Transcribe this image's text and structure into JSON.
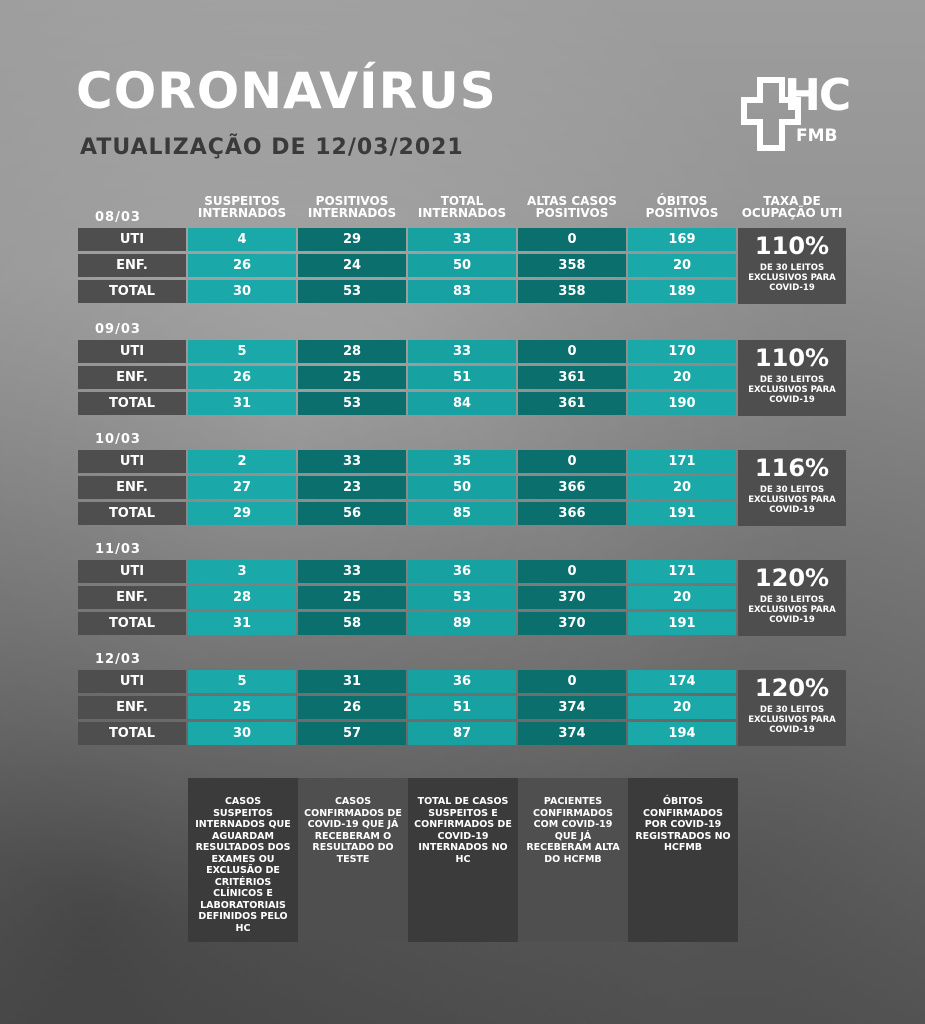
{
  "title": "CORONAVÍRUS",
  "subtitle": "ATUALIZAÇÃO DE 12/03/2021",
  "logo": {
    "hc": "HC",
    "fmb": "FMB"
  },
  "columns": [
    "SUSPEITOS INTERNADOS",
    "POSITIVOS INTERNADOS",
    "TOTAL INTERNADOS",
    "ALTAS CASOS POSITIVOS",
    "ÓBITOS POSITIVOS",
    "TAXA DE OCUPAÇÃO UTI"
  ],
  "occupancy_desc": "DE 30 LEITOS EXCLUSIVOS PARA COVID-19",
  "days": [
    {
      "date": "08/03",
      "occupancy": "110%",
      "rows": [
        {
          "label": "UTI",
          "values": [
            "4",
            "29",
            "33",
            "0",
            "169"
          ]
        },
        {
          "label": "ENF.",
          "values": [
            "26",
            "24",
            "50",
            "358",
            "20"
          ]
        },
        {
          "label": "TOTAL",
          "values": [
            "30",
            "53",
            "83",
            "358",
            "189"
          ]
        }
      ]
    },
    {
      "date": "09/03",
      "occupancy": "110%",
      "rows": [
        {
          "label": "UTI",
          "values": [
            "5",
            "28",
            "33",
            "0",
            "170"
          ]
        },
        {
          "label": "ENF.",
          "values": [
            "26",
            "25",
            "51",
            "361",
            "20"
          ]
        },
        {
          "label": "TOTAL",
          "values": [
            "31",
            "53",
            "84",
            "361",
            "190"
          ]
        }
      ]
    },
    {
      "date": "10/03",
      "occupancy": "116%",
      "rows": [
        {
          "label": "UTI",
          "values": [
            "2",
            "33",
            "35",
            "0",
            "171"
          ]
        },
        {
          "label": "ENF.",
          "values": [
            "27",
            "23",
            "50",
            "366",
            "20"
          ]
        },
        {
          "label": "TOTAL",
          "values": [
            "29",
            "56",
            "85",
            "366",
            "191"
          ]
        }
      ]
    },
    {
      "date": "11/03",
      "occupancy": "120%",
      "rows": [
        {
          "label": "UTI",
          "values": [
            "3",
            "33",
            "36",
            "0",
            "171"
          ]
        },
        {
          "label": "ENF.",
          "values": [
            "28",
            "25",
            "53",
            "370",
            "20"
          ]
        },
        {
          "label": "TOTAL",
          "values": [
            "31",
            "58",
            "89",
            "370",
            "191"
          ]
        }
      ]
    },
    {
      "date": "12/03",
      "occupancy": "120%",
      "rows": [
        {
          "label": "UTI",
          "values": [
            "5",
            "31",
            "36",
            "0",
            "174"
          ]
        },
        {
          "label": "ENF.",
          "values": [
            "25",
            "26",
            "51",
            "374",
            "20"
          ]
        },
        {
          "label": "TOTAL",
          "values": [
            "30",
            "57",
            "87",
            "374",
            "194"
          ]
        }
      ]
    }
  ],
  "legend": [
    "CASOS SUSPEITOS INTERNADOS QUE AGUARDAM RESULTADOS DOS EXAMES OU EXCLUSÃO DE CRITÉRIOS CLÍNICOS E LABORATORIAIS DEFINIDOS PELO HC",
    "CASOS CONFIRMADOS DE COVID-19 QUE JÁ RECEBERAM O RESULTADO DO TESTE",
    "TOTAL DE CASOS SUSPEITOS E CONFIRMADOS DE COVID-19 INTERNADOS NO HC",
    "PACIENTES CONFIRMADOS COM COVID-19 QUE JÁ RECEBERAM ALTA DO HCFMB",
    "ÓBITOS CONFIRMADOS POR COVID-19 REGISTRADOS NO HCFMB"
  ]
}
